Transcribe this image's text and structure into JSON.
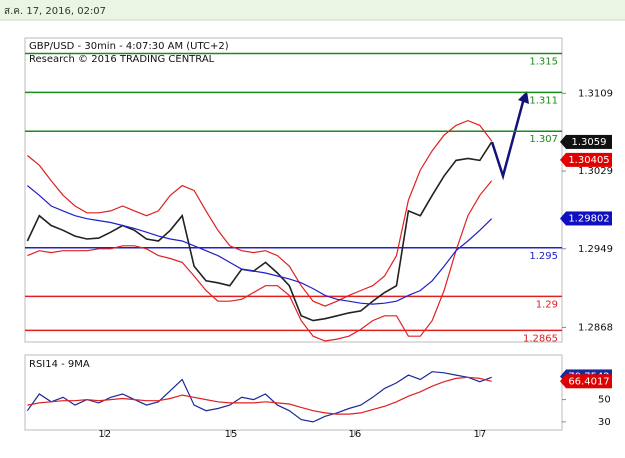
{
  "header": {
    "timestamp": "ส.ค. 17, 2016, 02:07"
  },
  "chart_data": [
    {
      "type": "line",
      "title": "GBP/USD - 30min - 4:07:30 AM (UTC+2)",
      "subtitle": "Research © 2016 TRADING CENTRAL",
      "xlim": [
        -0.2,
        44.9
      ],
      "xticks": [
        {
          "value": 6.5,
          "label": "12"
        },
        {
          "value": 17.1,
          "label": "15"
        },
        {
          "value": 27.5,
          "label": "16"
        },
        {
          "value": 38.0,
          "label": "17"
        }
      ],
      "ylim": [
        1.2853,
        1.3166
      ],
      "yticks": [
        1.3109,
        1.3029,
        1.2949,
        1.2868
      ],
      "series": [
        {
          "color": "#222222",
          "values": [
            1.2957,
            1.2983,
            1.2973,
            1.2968,
            1.2962,
            1.2959,
            1.296,
            1.2966,
            1.2973,
            1.2968,
            1.2959,
            1.2957,
            1.2968,
            1.2983,
            1.2931,
            1.2916,
            1.2914,
            1.2911,
            1.2928,
            1.2926,
            1.2935,
            1.2924,
            1.2911,
            1.288,
            1.2875,
            1.2877,
            1.288,
            1.2883,
            1.2885,
            1.2895,
            1.2904,
            1.2911,
            1.2988,
            1.2983,
            1.3004,
            1.3024,
            1.304,
            1.3042,
            1.304,
            1.3059
          ]
        },
        {
          "color": "#e02020",
          "values": [
            1.3045,
            1.3035,
            1.3019,
            1.3004,
            1.2993,
            1.2986,
            1.2986,
            1.2988,
            1.2993,
            1.2988,
            1.2983,
            1.2988,
            1.3004,
            1.3014,
            1.3009,
            1.2988,
            1.2968,
            1.2952,
            1.2947,
            1.2945,
            1.2947,
            1.2942,
            1.2931,
            1.2911,
            1.2895,
            1.289,
            1.2895,
            1.2901,
            1.2906,
            1.2911,
            1.2921,
            1.2942,
            1.2999,
            1.303,
            1.305,
            1.3066,
            1.3076,
            1.3081,
            1.3076,
            1.306
          ]
        },
        {
          "color": "#e02020",
          "values": [
            1.2942,
            1.2947,
            1.2945,
            1.2947,
            1.2947,
            1.2947,
            1.2949,
            1.2949,
            1.2952,
            1.2952,
            1.2949,
            1.2942,
            1.2939,
            1.2935,
            1.2921,
            1.2906,
            1.2895,
            1.2895,
            1.2897,
            1.2904,
            1.2911,
            1.2911,
            1.2901,
            1.2875,
            1.2859,
            1.2854,
            1.2856,
            1.2859,
            1.2866,
            1.2875,
            1.288,
            1.288,
            1.2859,
            1.2859,
            1.2875,
            1.2906,
            1.2947,
            1.2983,
            1.3004,
            1.3019
          ]
        },
        {
          "color": "#2020c8",
          "values": [
            1.3014,
            1.3004,
            1.2993,
            1.2988,
            1.2983,
            1.298,
            1.2978,
            1.2976,
            1.2973,
            1.297,
            1.2966,
            1.2962,
            1.2959,
            1.2957,
            1.2952,
            1.2947,
            1.2942,
            1.2935,
            1.2928,
            1.2926,
            1.2924,
            1.2921,
            1.2918,
            1.2914,
            1.2908,
            1.2901,
            1.2897,
            1.2895,
            1.2893,
            1.2892,
            1.2893,
            1.2895,
            1.2901,
            1.2906,
            1.2916,
            1.2931,
            1.2947,
            1.2957,
            1.2968,
            1.298
          ]
        }
      ],
      "levels": [
        {
          "value": 1.315,
          "color": "#1a8a1a"
        },
        {
          "value": 1.311,
          "color": "#1a8a1a"
        },
        {
          "value": 1.307,
          "color": "#1a8a1a"
        },
        {
          "value": 1.295,
          "color": "#2020c8"
        },
        {
          "value": 1.29,
          "color": "#e02020"
        },
        {
          "value": 1.2865,
          "color": "#e02020"
        }
      ],
      "markers": [
        {
          "value": 1.3059,
          "color": "#111111"
        },
        {
          "value": 1.30405,
          "color": "#e00000"
        },
        {
          "value": 1.29802,
          "color": "#1010c0"
        }
      ]
    },
    {
      "type": "line",
      "title": "RSI14 - 9MA",
      "xlim": [
        -0.2,
        44.9
      ],
      "ylim": [
        22.7,
        90
      ],
      "yticks": [
        50,
        30
      ],
      "series": [
        {
          "color": "#1a2a9a",
          "values": [
            40,
            55,
            48,
            52,
            45,
            50,
            47,
            52,
            55,
            50,
            45,
            48,
            58,
            68,
            45,
            40,
            42,
            45,
            52,
            50,
            55,
            45,
            40,
            32,
            30,
            35,
            38,
            42,
            45,
            52,
            60,
            65,
            72,
            68,
            75,
            74,
            72,
            70,
            66,
            70
          ]
        },
        {
          "color": "#e02020",
          "values": [
            45,
            47,
            48,
            49,
            49,
            50,
            49,
            50,
            51,
            50,
            49,
            49,
            51,
            54,
            52,
            50,
            48,
            47,
            47,
            47,
            48,
            47,
            46,
            43,
            40,
            38,
            37,
            37,
            38,
            41,
            44,
            48,
            53,
            57,
            62,
            66,
            69,
            70,
            69,
            66.4
          ]
        }
      ],
      "markers": [
        {
          "value": 70.7542,
          "color": "#1a2a9a"
        },
        {
          "value": 66.4017,
          "color": "#e00000"
        }
      ]
    }
  ]
}
